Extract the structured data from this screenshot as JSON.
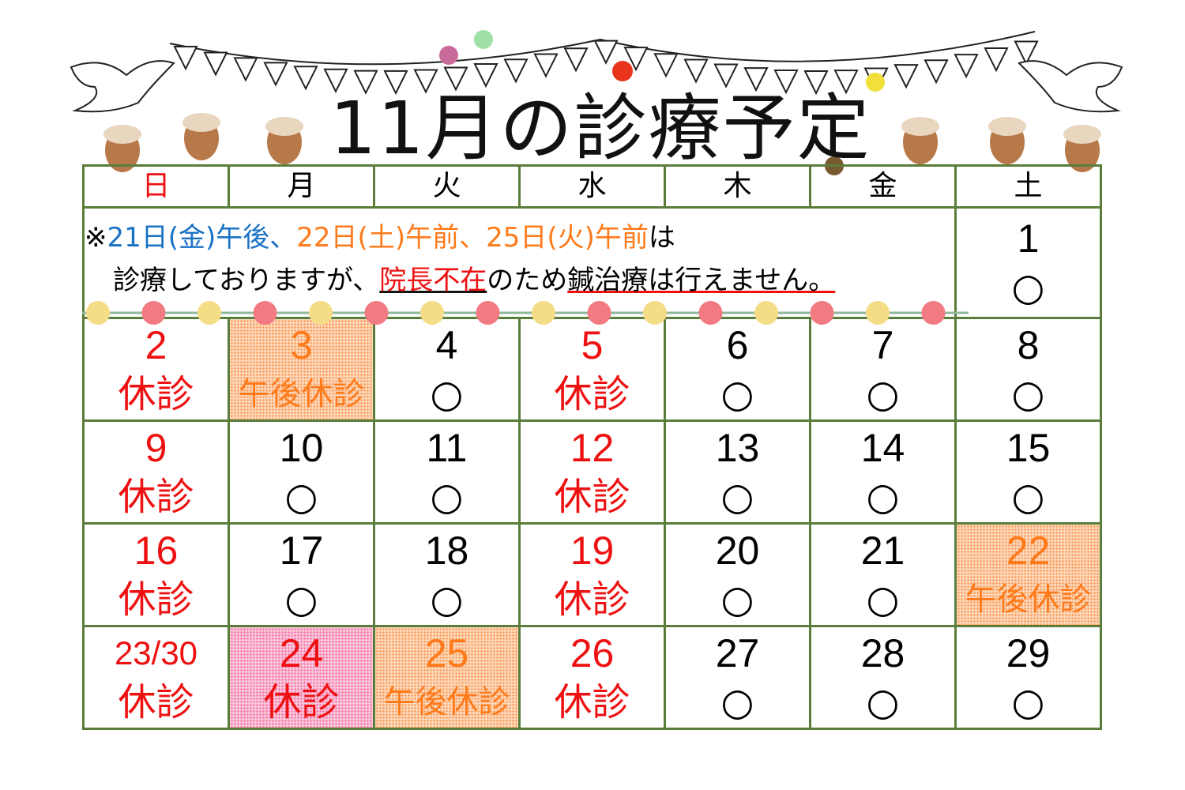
{
  "title": "11月の診療予定",
  "weekdays": [
    {
      "label": "日",
      "color": "red"
    },
    {
      "label": "月",
      "color": "black"
    },
    {
      "label": "火",
      "color": "black"
    },
    {
      "label": "水",
      "color": "black"
    },
    {
      "label": "木",
      "color": "black"
    },
    {
      "label": "金",
      "color": "black"
    },
    {
      "label": "土",
      "color": "black"
    }
  ],
  "notice": {
    "mark": "※",
    "part1": "21日(金)午後、",
    "part2": "22日(土)午前、25日(火)午前",
    "part3": "は",
    "line2a": "診療しておりますが、",
    "line2b": "院長不在",
    "line2c": "のため",
    "line2d": "鍼治療は行えません。"
  },
  "colors": {
    "closed": "#ee1111",
    "pm_closed": "#ff7a1a",
    "note_blue": "#1a72c4",
    "grid": "#5a7d3a"
  },
  "first_row": {
    "day": "1",
    "status": "○",
    "type": "open"
  },
  "weeks": [
    [
      {
        "day": "2",
        "status": "休診",
        "type": "closed"
      },
      {
        "day": "3",
        "status": "午後休診",
        "type": "pm-closed"
      },
      {
        "day": "4",
        "status": "○",
        "type": "open"
      },
      {
        "day": "5",
        "status": "休診",
        "type": "closed"
      },
      {
        "day": "6",
        "status": "○",
        "type": "open"
      },
      {
        "day": "7",
        "status": "○",
        "type": "open"
      },
      {
        "day": "8",
        "status": "○",
        "type": "open"
      }
    ],
    [
      {
        "day": "9",
        "status": "休診",
        "type": "closed"
      },
      {
        "day": "10",
        "status": "○",
        "type": "open"
      },
      {
        "day": "11",
        "status": "○",
        "type": "open"
      },
      {
        "day": "12",
        "status": "休診",
        "type": "closed"
      },
      {
        "day": "13",
        "status": "○",
        "type": "open"
      },
      {
        "day": "14",
        "status": "○",
        "type": "open"
      },
      {
        "day": "15",
        "status": "○",
        "type": "open"
      }
    ],
    [
      {
        "day": "16",
        "status": "休診",
        "type": "closed"
      },
      {
        "day": "17",
        "status": "○",
        "type": "open"
      },
      {
        "day": "18",
        "status": "○",
        "type": "open"
      },
      {
        "day": "19",
        "status": "休診",
        "type": "closed"
      },
      {
        "day": "20",
        "status": "○",
        "type": "open"
      },
      {
        "day": "21",
        "status": "○",
        "type": "open"
      },
      {
        "day": "22",
        "status": "午後休診",
        "type": "pm-closed"
      }
    ],
    [
      {
        "day": "23/30",
        "status": "休診",
        "type": "closed"
      },
      {
        "day": "24",
        "status": "休診",
        "type": "closed-highlight"
      },
      {
        "day": "25",
        "status": "午後休診",
        "type": "pm-closed"
      },
      {
        "day": "26",
        "status": "休診",
        "type": "closed"
      },
      {
        "day": "27",
        "status": "○",
        "type": "open"
      },
      {
        "day": "28",
        "status": "○",
        "type": "open"
      },
      {
        "day": "29",
        "status": "○",
        "type": "open"
      }
    ]
  ]
}
